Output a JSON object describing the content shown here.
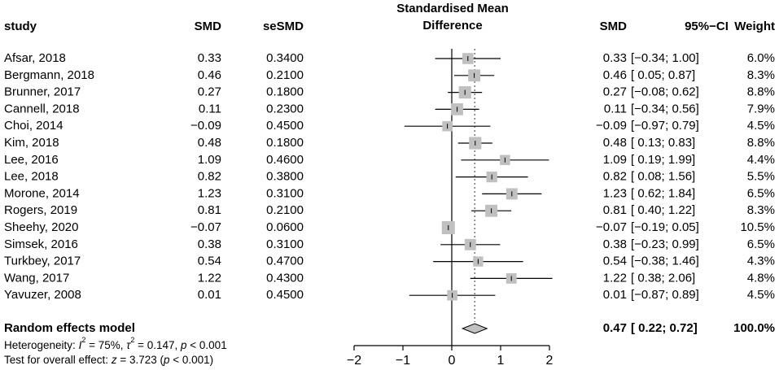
{
  "chart_data": {
    "type": "forest",
    "title": "Standardised Mean Difference",
    "columns": {
      "study": "study",
      "smd": "SMD",
      "se": "seSMD",
      "smd_right": "SMD",
      "ci": "95%−CI",
      "weight": "Weight"
    },
    "studies": [
      {
        "study": "Afsar, 2018",
        "smd": 0.33,
        "smd_label": "0.33",
        "se_label": "0.3400",
        "lo": -0.34,
        "hi": 1.0,
        "ci_label": "[−0.34; 1.00]",
        "weight": 6.0,
        "weight_label": "6.0%"
      },
      {
        "study": "Bergmann, 2018",
        "smd": 0.46,
        "smd_label": "0.46",
        "se_label": "0.2100",
        "lo": 0.05,
        "hi": 0.87,
        "ci_label": "[ 0.05; 0.87]",
        "weight": 8.3,
        "weight_label": "8.3%"
      },
      {
        "study": "Brunner, 2017",
        "smd": 0.27,
        "smd_label": "0.27",
        "se_label": "0.1800",
        "lo": -0.08,
        "hi": 0.62,
        "ci_label": "[−0.08; 0.62]",
        "weight": 8.8,
        "weight_label": "8.8%"
      },
      {
        "study": "Cannell, 2018",
        "smd": 0.11,
        "smd_label": "0.11",
        "se_label": "0.2300",
        "lo": -0.34,
        "hi": 0.56,
        "ci_label": "[−0.34; 0.56]",
        "weight": 7.9,
        "weight_label": "7.9%"
      },
      {
        "study": "Choi, 2014",
        "smd": -0.09,
        "smd_label": "−0.09",
        "se_label": "0.4500",
        "lo": -0.97,
        "hi": 0.79,
        "ci_label": "[−0.97; 0.79]",
        "weight": 4.5,
        "weight_label": "4.5%"
      },
      {
        "study": "Kim, 2018",
        "smd": 0.48,
        "smd_label": "0.48",
        "se_label": "0.1800",
        "lo": 0.13,
        "hi": 0.83,
        "ci_label": "[ 0.13; 0.83]",
        "weight": 8.8,
        "weight_label": "8.8%"
      },
      {
        "study": "Lee, 2016",
        "smd": 1.09,
        "smd_label": "1.09",
        "se_label": "0.4600",
        "lo": 0.19,
        "hi": 1.99,
        "ci_label": "[ 0.19; 1.99]",
        "weight": 4.4,
        "weight_label": "4.4%"
      },
      {
        "study": "Lee, 2018",
        "smd": 0.82,
        "smd_label": "0.82",
        "se_label": "0.3800",
        "lo": 0.08,
        "hi": 1.56,
        "ci_label": "[ 0.08; 1.56]",
        "weight": 5.5,
        "weight_label": "5.5%"
      },
      {
        "study": "Morone, 2014",
        "smd": 1.23,
        "smd_label": "1.23",
        "se_label": "0.3100",
        "lo": 0.62,
        "hi": 1.84,
        "ci_label": "[ 0.62; 1.84]",
        "weight": 6.5,
        "weight_label": "6.5%"
      },
      {
        "study": "Rogers, 2019",
        "smd": 0.81,
        "smd_label": "0.81",
        "se_label": "0.2100",
        "lo": 0.4,
        "hi": 1.22,
        "ci_label": "[ 0.40; 1.22]",
        "weight": 8.3,
        "weight_label": "8.3%"
      },
      {
        "study": "Sheehy, 2020",
        "smd": -0.07,
        "smd_label": "−0.07",
        "se_label": "0.0600",
        "lo": -0.19,
        "hi": 0.05,
        "ci_label": "[−0.19; 0.05]",
        "weight": 10.5,
        "weight_label": "10.5%"
      },
      {
        "study": "Simsek, 2016",
        "smd": 0.38,
        "smd_label": "0.38",
        "se_label": "0.3100",
        "lo": -0.23,
        "hi": 0.99,
        "ci_label": "[−0.23; 0.99]",
        "weight": 6.5,
        "weight_label": "6.5%"
      },
      {
        "study": "Turkbey, 2017",
        "smd": 0.54,
        "smd_label": "0.54",
        "se_label": "0.4700",
        "lo": -0.38,
        "hi": 1.46,
        "ci_label": "[−0.38; 1.46]",
        "weight": 4.3,
        "weight_label": "4.3%"
      },
      {
        "study": "Wang, 2017",
        "smd": 1.22,
        "smd_label": "1.22",
        "se_label": "0.4300",
        "lo": 0.38,
        "hi": 2.06,
        "ci_label": "[ 0.38; 2.06]",
        "weight": 4.8,
        "weight_label": "4.8%"
      },
      {
        "study": "Yavuzer, 2008",
        "smd": 0.01,
        "smd_label": "0.01",
        "se_label": "0.4500",
        "lo": -0.87,
        "hi": 0.89,
        "ci_label": "[−0.87; 0.89]",
        "weight": 4.5,
        "weight_label": "4.5%"
      }
    ],
    "summary": {
      "label": "Random effects model",
      "smd": 0.47,
      "smd_label": "0.47",
      "lo": 0.22,
      "hi": 0.72,
      "ci_label": "[ 0.22; 0.72]",
      "weight_label": "100.0%"
    },
    "heterogeneity": {
      "prefix": "Heterogeneity: ",
      "I2": "75%",
      "tau2": "0.147",
      "p": "< 0.001"
    },
    "overall_test": {
      "prefix": "Test for overall effect: ",
      "z": "3.723",
      "p": "< 0.001"
    },
    "x_axis": {
      "range": [
        -2,
        2
      ],
      "ticks": [
        -2,
        -1,
        0,
        1,
        2
      ],
      "tick_labels": [
        "−2",
        "−1",
        "0",
        "1",
        "2"
      ],
      "null_value": 0
    },
    "colors": {
      "box": "#c0c0c0",
      "line": "#000000",
      "diamond": "#c0c0c0",
      "ref": "#555555"
    }
  }
}
